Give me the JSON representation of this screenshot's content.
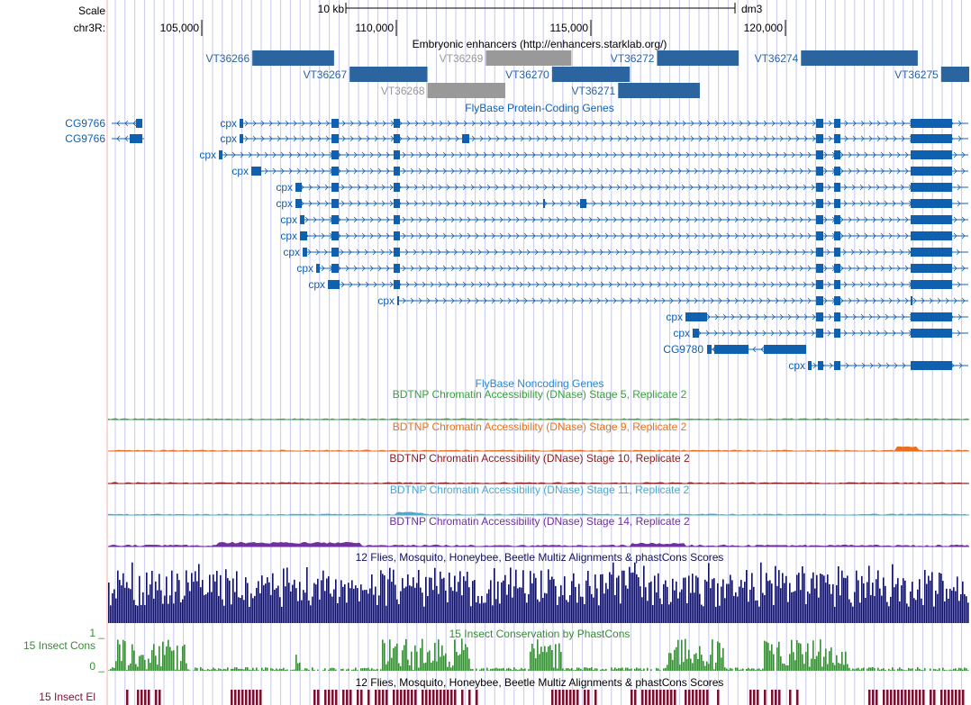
{
  "colors": {
    "gene_blue": "#1060b0",
    "enhancer_blue": "#2c64a0",
    "enhancer_gray": "#999999",
    "stage5": "#3aa040",
    "stage9": "#e87020",
    "stage10": "#8b1a1a",
    "stage11": "#4aaad0",
    "stage14": "#7030a0",
    "multiz": "#101060",
    "phastcons": "#3a8a3a",
    "elements": "#7a1030",
    "gridline": "#c8c8f0",
    "sideline": "#f0b0b0"
  },
  "ruler": {
    "scale_label": "Scale",
    "chrom_label": "chr3R:",
    "scale_text": "10 kb",
    "assembly": "dm3",
    "positions": [
      "105,000",
      "110,000",
      "115,000",
      "120,000"
    ]
  },
  "tracks": {
    "enhancers": {
      "title": "Embryonic enhancers (http://enhancers.starklab.org/)",
      "items": [
        {
          "name": "VT36266",
          "start": 106300,
          "end": 108400,
          "gray": false
        },
        {
          "name": "VT36267",
          "start": 108800,
          "end": 110800,
          "gray": false
        },
        {
          "name": "VT36268",
          "start": 110800,
          "end": 112800,
          "gray": false,
          "gray_flag": true
        },
        {
          "name": "VT36269",
          "start": 112300,
          "end": 114500,
          "gray": true
        },
        {
          "name": "VT36270",
          "start": 114000,
          "end": 116000,
          "gray": false
        },
        {
          "name": "VT36271",
          "start": 115700,
          "end": 117800,
          "gray": false
        },
        {
          "name": "VT36272",
          "start": 116700,
          "end": 118800,
          "gray": false
        },
        {
          "name": "VT36274",
          "start": 120400,
          "end": 123400,
          "gray": false
        },
        {
          "name": "VT36275",
          "start": 124000,
          "end": 124900,
          "gray": false
        }
      ]
    },
    "coding_genes": {
      "title": "FlyBase Protein-Coding Genes",
      "gene_labels": [
        "CG9766",
        "CG9766",
        "cpx",
        "cpx",
        "cpx",
        "cpx",
        "cpx",
        "cpx",
        "cpx",
        "cpx",
        "cpx",
        "cpx",
        "cpx",
        "cpx",
        "cpx",
        "cpx",
        "CG9780",
        "cpx"
      ]
    },
    "noncoding_title": "FlyBase Noncoding Genes",
    "dnase": [
      {
        "title": "BDTNP Chromatin Accessibility (DNase) Stage 5, Replicate 2",
        "color_key": "stage5"
      },
      {
        "title": "BDTNP Chromatin Accessibility (DNase) Stage 9, Replicate 2",
        "color_key": "stage9"
      },
      {
        "title": "BDTNP Chromatin Accessibility (DNase) Stage 10, Replicate 2",
        "color_key": "stage10"
      },
      {
        "title": "BDTNP Chromatin Accessibility (DNase) Stage 11, Replicate 2",
        "color_key": "stage11"
      },
      {
        "title": "BDTNP Chromatin Accessibility (DNase) Stage 14, Replicate 2",
        "color_key": "stage14"
      }
    ],
    "multiz_title": "12 Flies, Mosquito, Honeybee, Beetle Multiz Alignments & phastCons Scores",
    "phastcons": {
      "title": "15 Insect Conservation by PhastCons",
      "side_label": "15 Insect Cons",
      "max_label": "1 _",
      "min_label": "0 _"
    },
    "elements": {
      "title": "12 Flies, Mosquito, Honeybee, Beetle Multiz Alignments & phastCons Scores",
      "side_label": "15 Insect El"
    }
  }
}
